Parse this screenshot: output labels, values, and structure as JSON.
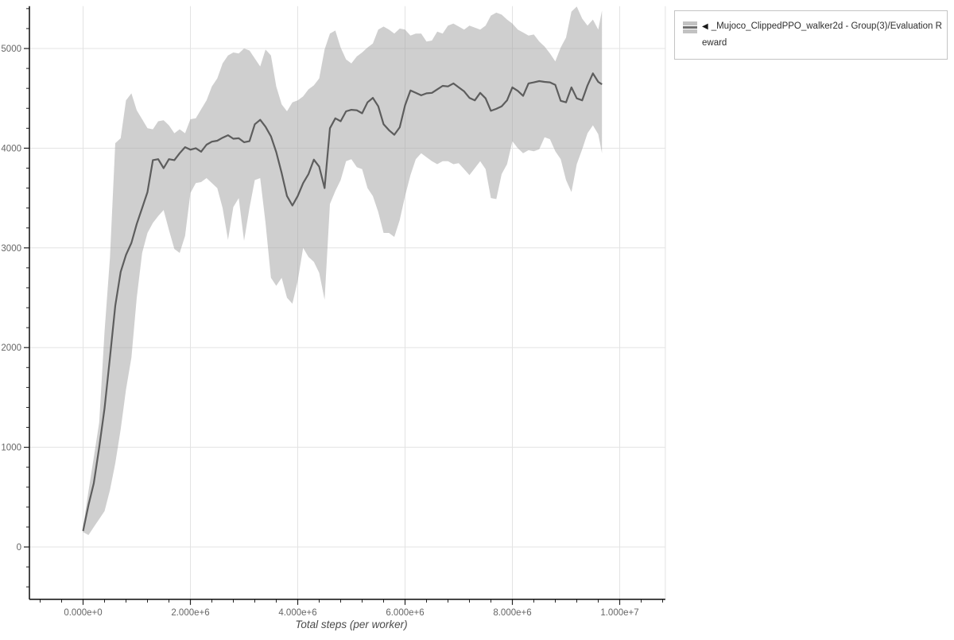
{
  "legend": {
    "marker": "◀",
    "label": "_Mujoco_ClippedPPO_walker2d - Group(3)/Evaluation Reward"
  },
  "axis": {
    "x_title": "Total steps (per worker)"
  },
  "colors": {
    "band_fill": "#a0a0a0",
    "band_opacity": 0.5,
    "mean_line": "#5d5d5d",
    "gridline": "#e3e3e3",
    "spine": "#1a1a1a",
    "tick_mark": "#222222",
    "tick_label": "#666666",
    "axis_title": "#4a4a4a",
    "legend_border": "#c4c4c4",
    "swatch_fill": "#c2c2c2",
    "swatch_line": "#6f6f6f"
  },
  "chart_data": {
    "type": "line",
    "title": "",
    "xlabel": "Total steps (per worker)",
    "ylabel": "",
    "x_units": "millions of steps",
    "xlim": [
      -1.0,
      10.85
    ],
    "ylim": [
      -525,
      5425
    ],
    "grid": "major",
    "legend_position": "top-right",
    "x_major_ticks": [
      {
        "value": 0,
        "label": "0.000e+0"
      },
      {
        "value": 2,
        "label": "2.000e+6"
      },
      {
        "value": 4,
        "label": "4.000e+6"
      },
      {
        "value": 6,
        "label": "6.000e+6"
      },
      {
        "value": 8,
        "label": "8.000e+6"
      },
      {
        "value": 10,
        "label": "1.000e+7"
      }
    ],
    "y_major_ticks": [
      {
        "value": 0,
        "label": "0"
      },
      {
        "value": 1000,
        "label": "1000"
      },
      {
        "value": 2000,
        "label": "2000"
      },
      {
        "value": 3000,
        "label": "3000"
      },
      {
        "value": 4000,
        "label": "4000"
      },
      {
        "value": 5000,
        "label": "5000"
      }
    ],
    "x_minor_step": 0.4,
    "x_minor_range": [
      -0.8,
      10.8
    ],
    "y_minor_step": 200,
    "y_minor_range": [
      -400,
      5400
    ],
    "x": [
      0,
      0.1,
      0.2,
      0.3,
      0.4,
      0.5,
      0.6,
      0.7,
      0.8,
      0.9,
      1.0,
      1.1,
      1.2,
      1.3,
      1.4,
      1.5,
      1.6,
      1.7,
      1.8,
      1.9,
      2.0,
      2.1,
      2.2,
      2.3,
      2.4,
      2.5,
      2.6,
      2.7,
      2.8,
      2.9,
      3.0,
      3.1,
      3.2,
      3.3,
      3.4,
      3.5,
      3.6,
      3.7,
      3.8,
      3.9,
      4.0,
      4.1,
      4.2,
      4.3,
      4.4,
      4.5,
      4.6,
      4.7,
      4.8,
      4.9,
      5.0,
      5.1,
      5.2,
      5.3,
      5.4,
      5.5,
      5.6,
      5.7,
      5.8,
      5.9,
      6.0,
      6.1,
      6.2,
      6.3,
      6.4,
      6.5,
      6.6,
      6.7,
      6.8,
      6.9,
      7.0,
      7.1,
      7.2,
      7.3,
      7.4,
      7.5,
      7.6,
      7.7,
      7.8,
      7.9,
      8.0,
      8.1,
      8.2,
      8.3,
      8.4,
      8.5,
      8.6,
      8.7,
      8.8,
      8.9,
      9.0,
      9.1,
      9.2,
      9.3,
      9.4,
      9.5,
      9.6,
      9.67
    ],
    "series": [
      {
        "name": "mean",
        "values": [
          160,
          420,
          640,
          1000,
          1390,
          1900,
          2420,
          2760,
          2930,
          3050,
          3240,
          3400,
          3560,
          3880,
          3890,
          3800,
          3890,
          3880,
          3950,
          4010,
          3985,
          4000,
          3965,
          4035,
          4065,
          4075,
          4105,
          4130,
          4095,
          4100,
          4060,
          4070,
          4240,
          4285,
          4215,
          4120,
          3960,
          3750,
          3520,
          3425,
          3520,
          3650,
          3740,
          3885,
          3815,
          3600,
          4200,
          4300,
          4270,
          4370,
          4385,
          4380,
          4350,
          4460,
          4505,
          4420,
          4240,
          4180,
          4135,
          4210,
          4430,
          4580,
          4555,
          4530,
          4550,
          4555,
          4590,
          4625,
          4620,
          4650,
          4610,
          4570,
          4505,
          4480,
          4555,
          4500,
          4375,
          4395,
          4420,
          4480,
          4610,
          4575,
          4525,
          4650,
          4660,
          4673,
          4665,
          4660,
          4635,
          4475,
          4460,
          4610,
          4500,
          4480,
          4630,
          4750,
          4665,
          4640
        ]
      },
      {
        "name": "band_lower",
        "values": [
          150,
          120,
          200,
          280,
          360,
          570,
          840,
          1180,
          1580,
          1900,
          2500,
          2950,
          3150,
          3250,
          3320,
          3380,
          3180,
          2990,
          2950,
          3120,
          3550,
          3650,
          3660,
          3700,
          3650,
          3600,
          3400,
          3080,
          3410,
          3500,
          3070,
          3400,
          3680,
          3700,
          3250,
          2700,
          2620,
          2700,
          2500,
          2440,
          2670,
          3000,
          2910,
          2860,
          2750,
          2480,
          3440,
          3570,
          3680,
          3870,
          3890,
          3810,
          3790,
          3600,
          3520,
          3360,
          3150,
          3150,
          3110,
          3280,
          3520,
          3730,
          3890,
          3950,
          3910,
          3870,
          3840,
          3870,
          3870,
          3840,
          3850,
          3790,
          3730,
          3800,
          3870,
          3790,
          3500,
          3490,
          3740,
          3840,
          4070,
          4000,
          3950,
          3980,
          3970,
          3990,
          4110,
          4090,
          3970,
          3890,
          3680,
          3560,
          3840,
          3990,
          4150,
          4230,
          4140,
          3950
        ]
      },
      {
        "name": "band_upper",
        "values": [
          200,
          560,
          900,
          1250,
          2160,
          2900,
          4050,
          4100,
          4480,
          4550,
          4380,
          4290,
          4200,
          4190,
          4270,
          4280,
          4230,
          4150,
          4190,
          4150,
          4290,
          4300,
          4390,
          4480,
          4620,
          4700,
          4850,
          4930,
          4960,
          4950,
          5000,
          4980,
          4900,
          4820,
          4990,
          4930,
          4620,
          4440,
          4370,
          4460,
          4480,
          4520,
          4590,
          4630,
          4700,
          4990,
          5150,
          5180,
          5010,
          4890,
          4850,
          4920,
          4960,
          5010,
          5050,
          5190,
          5220,
          5190,
          5150,
          5200,
          5190,
          5130,
          5150,
          5150,
          5070,
          5080,
          5170,
          5150,
          5230,
          5250,
          5220,
          5190,
          5230,
          5210,
          5190,
          5230,
          5330,
          5360,
          5340,
          5290,
          5250,
          5190,
          5160,
          5130,
          5140,
          5070,
          5020,
          4950,
          4870,
          5010,
          5110,
          5370,
          5420,
          5300,
          5230,
          5290,
          5190,
          5380
        ]
      }
    ]
  }
}
